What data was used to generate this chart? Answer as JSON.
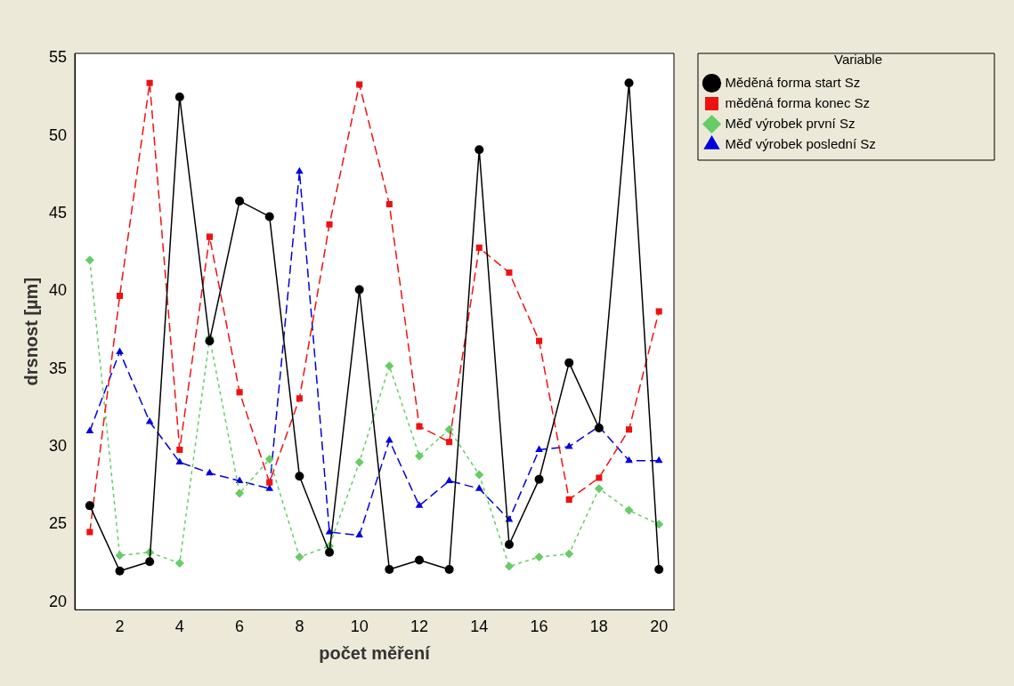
{
  "chart_data": {
    "type": "line",
    "xlabel": "počet měření",
    "ylabel": "drsnost [µm]",
    "legend_title": "Variable",
    "legend": "top right",
    "x": [
      1,
      2,
      3,
      4,
      5,
      6,
      7,
      8,
      9,
      10,
      11,
      12,
      13,
      14,
      15,
      16,
      17,
      18,
      19,
      20
    ],
    "xlim": [
      0.5,
      20.5
    ],
    "xticks": [
      2,
      4,
      6,
      8,
      10,
      12,
      14,
      16,
      18,
      20
    ],
    "ylim": [
      19.5,
      55.3
    ],
    "yticks": [
      20,
      25,
      30,
      35,
      40,
      45,
      50,
      55
    ],
    "grid": false,
    "series": [
      {
        "name": "Měděná forma start Sz",
        "color": "#000000",
        "marker": "circle",
        "line_style": "solid",
        "values": [
          26.2,
          22.0,
          22.6,
          52.5,
          36.8,
          45.8,
          44.8,
          28.1,
          23.2,
          40.1,
          22.1,
          22.7,
          22.1,
          49.1,
          23.7,
          27.9,
          35.4,
          31.2,
          53.4,
          22.1
        ]
      },
      {
        "name": "měděná forma konec Sz",
        "color": "#ee1111",
        "marker": "square",
        "line_style": "dashed",
        "values": [
          24.5,
          39.7,
          53.4,
          29.8,
          43.5,
          33.5,
          27.7,
          33.1,
          44.3,
          53.3,
          45.6,
          31.3,
          30.3,
          42.8,
          41.2,
          36.8,
          26.6,
          28.0,
          31.1,
          38.7
        ]
      },
      {
        "name": "Měď výrobek první Sz",
        "color": "#66cc66",
        "marker": "diamond",
        "line_style": "dotted",
        "values": [
          42.0,
          23.0,
          23.2,
          22.5,
          37.0,
          27.0,
          29.2,
          22.9,
          23.6,
          29.0,
          35.2,
          29.4,
          31.1,
          28.2,
          22.3,
          22.9,
          23.1,
          27.3,
          25.9,
          25.0
        ]
      },
      {
        "name": "Měď výrobek poslední Sz",
        "color": "#0000dd",
        "marker": "triangle",
        "line_style": "dashed",
        "values": [
          31.0,
          36.1,
          31.6,
          29.0,
          28.3,
          27.8,
          27.3,
          47.7,
          24.5,
          24.3,
          30.4,
          26.2,
          27.8,
          27.3,
          25.3,
          29.8,
          30.0,
          31.3,
          29.1,
          29.1
        ]
      }
    ]
  }
}
